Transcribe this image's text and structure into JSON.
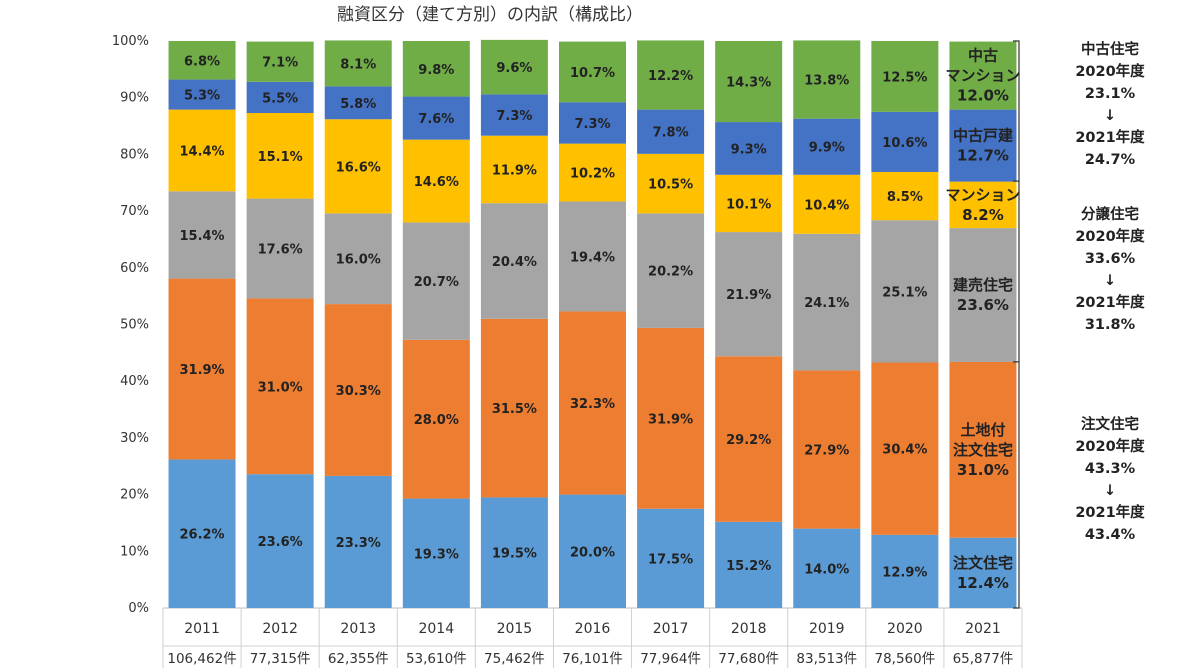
{
  "chart_data": {
    "type": "bar",
    "stacked": true,
    "title": "融資区分（建て方別）の内訳（構成比）",
    "categories": [
      "2011",
      "2012",
      "2013",
      "2014",
      "2015",
      "2016",
      "2017",
      "2018",
      "2019",
      "2020",
      "2021"
    ],
    "counts": [
      "106,462件",
      "77,315件",
      "62,355件",
      "53,610件",
      "75,462件",
      "76,101件",
      "77,964件",
      "77,680件",
      "83,513件",
      "78,560件",
      "65,877件"
    ],
    "ylim": [
      0,
      100
    ],
    "ytick_labels": [
      "0%",
      "10%",
      "20%",
      "30%",
      "40%",
      "50%",
      "60%",
      "70%",
      "80%",
      "90%",
      "100%"
    ],
    "grid": false,
    "series": [
      {
        "color": "#5b9bd5",
        "values": [
          26.2,
          23.6,
          23.3,
          19.3,
          19.5,
          20.0,
          17.5,
          15.2,
          14.0,
          12.9,
          12.4
        ],
        "labels": [
          "26.2%",
          "23.6%",
          "23.3%",
          "19.3%",
          "19.5%",
          "20.0%",
          "17.5%",
          "15.2%",
          "14.0%",
          "12.9%",
          "12.4%"
        ]
      },
      {
        "color": "#ed7d31",
        "values": [
          31.9,
          31.0,
          30.3,
          28.0,
          31.5,
          32.3,
          31.9,
          29.2,
          27.9,
          30.4,
          31.0
        ],
        "labels": [
          "31.9%",
          "31.0%",
          "30.3%",
          "28.0%",
          "31.5%",
          "32.3%",
          "31.9%",
          "29.2%",
          "27.9%",
          "30.4%",
          "31.0%"
        ]
      },
      {
        "color": "#a5a5a5",
        "values": [
          15.4,
          17.6,
          16.0,
          20.7,
          20.4,
          19.4,
          20.2,
          21.9,
          24.1,
          25.1,
          23.6
        ],
        "labels": [
          "15.4%",
          "17.6%",
          "16.0%",
          "20.7%",
          "20.4%",
          "19.4%",
          "20.2%",
          "21.9%",
          "24.1%",
          "25.1%",
          "23.6%"
        ]
      },
      {
        "color": "#ffc000",
        "values": [
          14.4,
          15.1,
          16.6,
          14.6,
          11.9,
          10.2,
          10.5,
          10.1,
          10.4,
          8.5,
          8.2
        ],
        "labels": [
          "14.4%",
          "15.1%",
          "16.6%",
          "14.6%",
          "11.9%",
          "10.2%",
          "10.5%",
          "10.1%",
          "10.4%",
          "8.5%",
          "8.2%"
        ]
      },
      {
        "color": "#4472c4",
        "values": [
          5.3,
          5.5,
          5.8,
          7.6,
          7.3,
          7.3,
          7.8,
          9.3,
          9.9,
          10.6,
          12.7
        ],
        "labels": [
          "5.3%",
          "5.5%",
          "5.8%",
          "7.6%",
          "7.3%",
          "7.3%",
          "7.8%",
          "9.3%",
          "9.9%",
          "10.6%",
          "12.7%"
        ]
      },
      {
        "color": "#70ad47",
        "values": [
          6.8,
          7.1,
          8.1,
          9.8,
          9.6,
          10.7,
          12.2,
          14.3,
          13.8,
          12.5,
          12.0
        ],
        "labels": [
          "6.8%",
          "7.1%",
          "8.1%",
          "9.8%",
          "9.6%",
          "10.7%",
          "12.2%",
          "14.3%",
          "13.8%",
          "12.5%",
          "12.0%"
        ]
      }
    ],
    "last_bar_labels": [
      [
        "注文住宅",
        "12.4%"
      ],
      [
        "土地付",
        "注文住宅",
        "31.0%"
      ],
      [
        "建売住宅",
        "23.6%"
      ],
      [
        "マンション",
        "8.2%"
      ],
      [
        "中古戸建",
        "12.7%"
      ],
      [
        "中古",
        "マンション",
        "12.0%"
      ]
    ],
    "annotations": [
      {
        "group": "中古住宅",
        "lines": [
          "中古住宅",
          "2020年度",
          "23.1%",
          "↓",
          "2021年度",
          "24.7%"
        ]
      },
      {
        "group": "分譲住宅",
        "lines": [
          "分譲住宅",
          "2020年度",
          "33.6%",
          "↓",
          "2021年度",
          "31.8%"
        ]
      },
      {
        "group": "注文住宅",
        "lines": [
          "注文住宅",
          "2020年度",
          "43.3%",
          "↓",
          "2021年度",
          "43.4%"
        ]
      }
    ]
  }
}
